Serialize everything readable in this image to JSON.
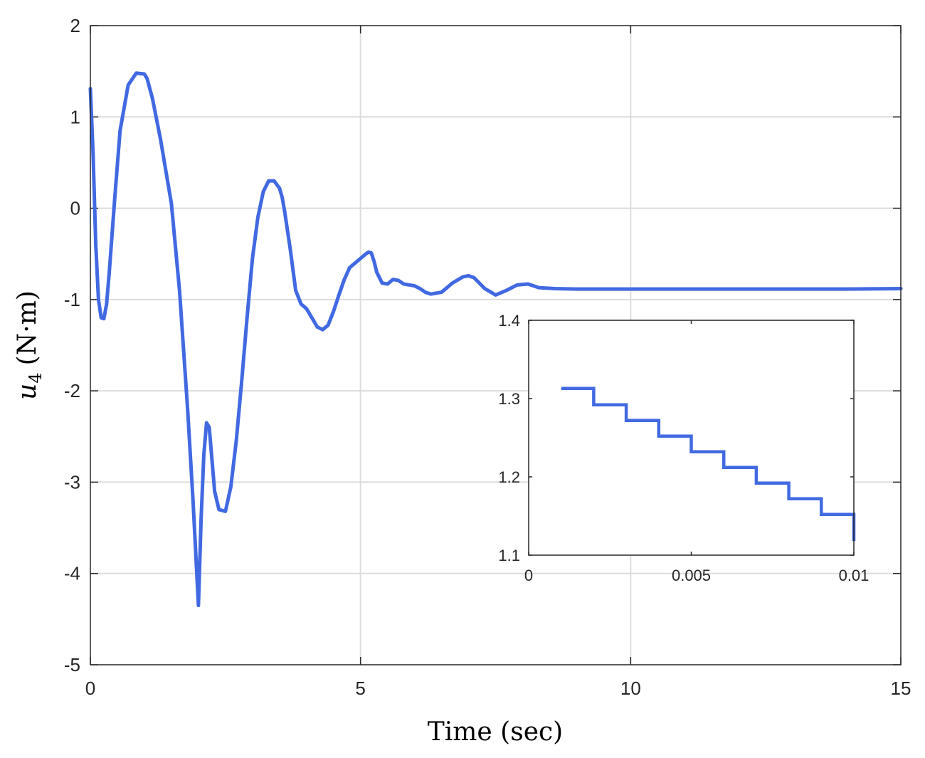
{
  "chart_data": [
    {
      "type": "line",
      "xlabel": "Time (sec)",
      "ylabel": {
        "symbol": "u",
        "subscript": "4",
        "unit": "(N·m)"
      },
      "xlim": [
        0,
        15
      ],
      "ylim": [
        -5,
        2
      ],
      "xticks": [
        0,
        5,
        10,
        15
      ],
      "yticks": [
        -5,
        -4,
        -3,
        -2,
        -1,
        0,
        1,
        2
      ],
      "xtick_labels": [
        "0",
        "5",
        "10",
        "15"
      ],
      "ytick_labels": [
        "-5",
        "-4",
        "-3",
        "-2",
        "-1",
        "0",
        "1",
        "2"
      ],
      "grid": true,
      "line_color": "#4169e1",
      "series": [
        {
          "x": [
            0,
            0.05,
            0.1,
            0.15,
            0.2,
            0.25,
            0.3,
            0.35,
            0.45,
            0.55,
            0.7,
            0.85,
            1.0,
            1.05,
            1.15,
            1.3,
            1.5,
            1.65,
            1.8,
            1.9,
            2.0,
            2.05,
            2.1,
            2.15,
            2.2,
            2.25,
            2.3,
            2.38,
            2.5,
            2.6,
            2.7,
            2.8,
            2.9,
            3.0,
            3.1,
            3.2,
            3.3,
            3.4,
            3.5,
            3.55,
            3.6,
            3.7,
            3.8,
            3.9,
            4.0,
            4.1,
            4.2,
            4.3,
            4.4,
            4.5,
            4.6,
            4.7,
            4.8,
            4.9,
            5.0,
            5.1,
            5.15,
            5.2,
            5.25,
            5.3,
            5.4,
            5.5,
            5.6,
            5.7,
            5.8,
            5.9,
            6.0,
            6.1,
            6.2,
            6.3,
            6.5,
            6.7,
            6.9,
            7.0,
            7.1,
            7.3,
            7.5,
            7.7,
            7.9,
            8.1,
            8.3,
            8.6,
            9.0,
            10.0,
            11.0,
            12.0,
            13.0,
            14.0,
            15.0
          ],
          "values": [
            1.31,
            0.6,
            -0.4,
            -1.0,
            -1.2,
            -1.21,
            -1.05,
            -0.7,
            0.1,
            0.85,
            1.35,
            1.48,
            1.47,
            1.42,
            1.2,
            0.75,
            0.05,
            -0.9,
            -2.2,
            -3.2,
            -4.35,
            -3.4,
            -2.7,
            -2.35,
            -2.4,
            -2.75,
            -3.1,
            -3.3,
            -3.32,
            -3.05,
            -2.55,
            -1.9,
            -1.2,
            -0.55,
            -0.1,
            0.18,
            0.3,
            0.3,
            0.22,
            0.12,
            -0.05,
            -0.45,
            -0.9,
            -1.05,
            -1.1,
            -1.2,
            -1.3,
            -1.33,
            -1.28,
            -1.13,
            -0.95,
            -0.78,
            -0.65,
            -0.6,
            -0.55,
            -0.5,
            -0.48,
            -0.49,
            -0.58,
            -0.7,
            -0.82,
            -0.83,
            -0.78,
            -0.79,
            -0.83,
            -0.84,
            -0.85,
            -0.88,
            -0.92,
            -0.94,
            -0.92,
            -0.82,
            -0.75,
            -0.74,
            -0.76,
            -0.88,
            -0.95,
            -0.9,
            -0.84,
            -0.83,
            -0.87,
            -0.88,
            -0.885,
            -0.885,
            -0.885,
            -0.885,
            -0.885,
            -0.885,
            -0.88
          ]
        }
      ]
    },
    {
      "type": "line",
      "xlim": [
        0,
        0.01
      ],
      "ylim": [
        1.1,
        1.4
      ],
      "xticks": [
        0,
        0.005,
        0.01
      ],
      "yticks": [
        1.1,
        1.2,
        1.3,
        1.4
      ],
      "xtick_labels": [
        "0",
        "0.005",
        "0.01"
      ],
      "ytick_labels": [
        "1.1",
        "1.2",
        "1.3",
        "1.4"
      ],
      "grid": false,
      "line_color": "#4169e1",
      "series": [
        {
          "step": "post",
          "x": [
            0.001,
            0.002,
            0.003,
            0.004,
            0.005,
            0.006,
            0.007,
            0.008,
            0.009,
            0.01
          ],
          "values": [
            1.313,
            1.292,
            1.272,
            1.252,
            1.232,
            1.212,
            1.192,
            1.172,
            1.152,
            1.132
          ]
        }
      ]
    }
  ]
}
